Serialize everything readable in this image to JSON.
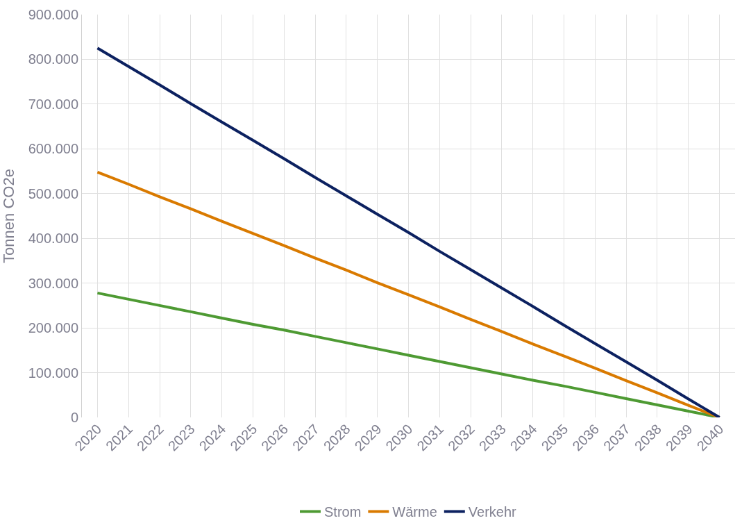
{
  "chart_data": {
    "type": "line",
    "ylabel": "Tonnen CO2e",
    "categories": [
      "2020",
      "2021",
      "2022",
      "2023",
      "2024",
      "2025",
      "2026",
      "2027",
      "2028",
      "2029",
      "2030",
      "2031",
      "2032",
      "2033",
      "2034",
      "2035",
      "2036",
      "2037",
      "2038",
      "2039",
      "2040"
    ],
    "series": [
      {
        "name": "Strom",
        "color": "#4e9a33",
        "values": [
          278000,
          264000,
          250000,
          236000,
          222000,
          208000,
          195000,
          181000,
          167000,
          153000,
          139000,
          125000,
          111000,
          97000,
          83000,
          70000,
          56000,
          42000,
          28000,
          14000,
          0
        ]
      },
      {
        "name": "Wärme",
        "color": "#d97a00",
        "values": [
          548000,
          521000,
          493000,
          466000,
          438000,
          411000,
          384000,
          356000,
          329000,
          301000,
          274000,
          247000,
          219000,
          192000,
          164000,
          137000,
          110000,
          82000,
          55000,
          27000,
          0
        ]
      },
      {
        "name": "Verkehr",
        "color": "#0c2160",
        "values": [
          825000,
          784000,
          743000,
          701000,
          660000,
          619000,
          578000,
          536000,
          495000,
          454000,
          413000,
          371000,
          330000,
          289000,
          248000,
          206000,
          165000,
          124000,
          83000,
          41000,
          0
        ]
      }
    ],
    "ylim": [
      0,
      900000
    ],
    "yticks": [
      0,
      {
        "value": 100000,
        "label": "100.000"
      },
      {
        "value": 200000,
        "label": "200.000"
      },
      {
        "value": 300000,
        "label": "300.000"
      },
      {
        "value": 400000,
        "label": "400.000"
      },
      {
        "value": 500000,
        "label": "500.000"
      },
      {
        "value": 600000,
        "label": "600.000"
      },
      {
        "value": 700000,
        "label": "700.000"
      },
      {
        "value": 800000,
        "label": "800.000"
      },
      {
        "value": 900000,
        "label": "900.000"
      }
    ],
    "grid": true,
    "legend": "bottom",
    "marker": "none",
    "line_style": "solid"
  }
}
